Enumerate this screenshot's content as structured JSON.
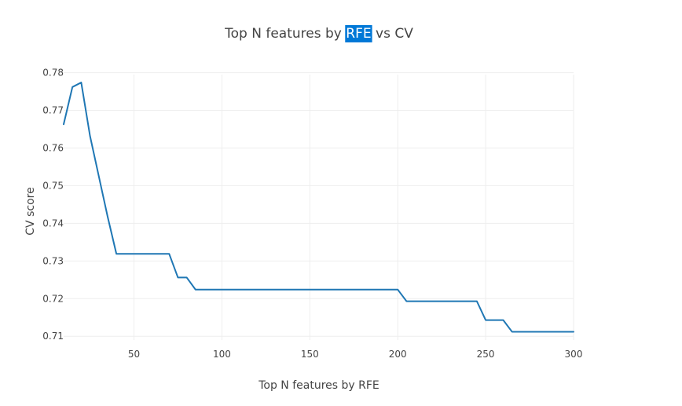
{
  "chart_data": {
    "type": "line",
    "title_prefix": "Top N features by ",
    "title_highlight": "RFE",
    "title_suffix": " vs CV",
    "xlabel": "Top N features by RFE",
    "ylabel": "CV score",
    "xlim": [
      10,
      300
    ],
    "ylim": [
      0.709,
      0.7795
    ],
    "x_ticks": [
      50,
      100,
      150,
      200,
      250,
      300
    ],
    "y_ticks": [
      0.71,
      0.72,
      0.73,
      0.74,
      0.75,
      0.76,
      0.77,
      0.78
    ],
    "grid": true,
    "series": [
      {
        "color": "#1f77b4",
        "points": [
          [
            10,
            0.7663
          ],
          [
            15,
            0.7762
          ],
          [
            20,
            0.7774
          ],
          [
            25,
            0.7632
          ],
          [
            30,
            0.7525
          ],
          [
            35,
            0.7418
          ],
          [
            40,
            0.7319
          ],
          [
            45,
            0.7319
          ],
          [
            50,
            0.7319
          ],
          [
            55,
            0.7319
          ],
          [
            60,
            0.7319
          ],
          [
            65,
            0.7319
          ],
          [
            70,
            0.7319
          ],
          [
            75,
            0.7256
          ],
          [
            80,
            0.7256
          ],
          [
            85,
            0.7224
          ],
          [
            90,
            0.7224
          ],
          [
            100,
            0.7224
          ],
          [
            120,
            0.7224
          ],
          [
            150,
            0.7224
          ],
          [
            180,
            0.7224
          ],
          [
            200,
            0.7224
          ],
          [
            205,
            0.7193
          ],
          [
            210,
            0.7193
          ],
          [
            230,
            0.7193
          ],
          [
            245,
            0.7193
          ],
          [
            250,
            0.7143
          ],
          [
            255,
            0.7143
          ],
          [
            260,
            0.7143
          ],
          [
            265,
            0.7112
          ],
          [
            270,
            0.7112
          ],
          [
            280,
            0.7112
          ],
          [
            290,
            0.7112
          ],
          [
            300,
            0.7112
          ]
        ]
      }
    ],
    "colors": {
      "title_highlight_background": "#0078d7",
      "title_highlight_text": "#ffffff",
      "grid": "#eeeeee"
    }
  }
}
